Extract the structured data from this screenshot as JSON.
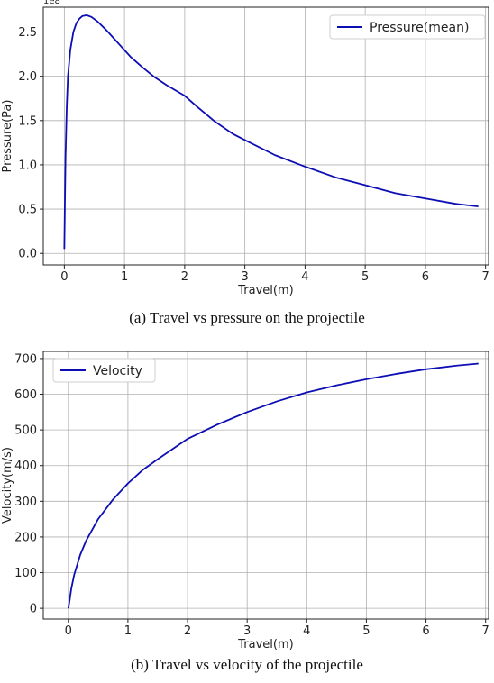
{
  "chart_data": [
    {
      "type": "line",
      "title": "",
      "caption": "(a) Travel vs pressure on the projectile",
      "xlabel": "Travel(m)",
      "ylabel": "Pressure(Pa)",
      "y_offset_label": "1e8",
      "xlim": [
        -0.35,
        7.05
      ],
      "ylim": [
        -0.13,
        2.78
      ],
      "x_ticks": [
        0,
        1,
        2,
        3,
        4,
        5,
        6,
        7
      ],
      "y_ticks": [
        0.0,
        0.5,
        1.0,
        1.5,
        2.0,
        2.5
      ],
      "y_tick_labels": [
        "0.0",
        "0.5",
        "1.0",
        "1.5",
        "2.0",
        "2.5"
      ],
      "grid": true,
      "legend_position": "top-right",
      "color": "#0d0db4",
      "series": [
        {
          "name": "Pressure(mean)",
          "x": [
            0.0,
            0.01,
            0.02,
            0.04,
            0.06,
            0.1,
            0.15,
            0.2,
            0.25,
            0.3,
            0.37,
            0.45,
            0.55,
            0.7,
            0.9,
            1.1,
            1.3,
            1.5,
            1.7,
            2.0,
            2.2,
            2.5,
            2.8,
            3.0,
            3.5,
            4.0,
            4.5,
            5.0,
            5.5,
            6.0,
            6.5,
            6.88
          ],
          "y": [
            0.05,
            0.6,
            1.1,
            1.65,
            2.0,
            2.3,
            2.5,
            2.6,
            2.65,
            2.68,
            2.69,
            2.67,
            2.62,
            2.52,
            2.37,
            2.22,
            2.1,
            1.99,
            1.9,
            1.78,
            1.66,
            1.49,
            1.35,
            1.28,
            1.11,
            0.98,
            0.86,
            0.77,
            0.68,
            0.62,
            0.56,
            0.53
          ]
        }
      ]
    },
    {
      "type": "line",
      "title": "",
      "caption": "(b) Travel vs velocity of the projectile",
      "xlabel": "Travel(m)",
      "ylabel": "Velocity(m/s)",
      "y_offset_label": "",
      "xlim": [
        -0.42,
        7.05
      ],
      "ylim": [
        -30,
        720
      ],
      "x_ticks": [
        0,
        1,
        2,
        3,
        4,
        5,
        6,
        7
      ],
      "y_ticks": [
        0,
        100,
        200,
        300,
        400,
        500,
        600,
        700
      ],
      "y_tick_labels": [
        "0",
        "100",
        "200",
        "300",
        "400",
        "500",
        "600",
        "700"
      ],
      "grid": true,
      "legend_position": "top-left",
      "color": "#0d0db4",
      "series": [
        {
          "name": "Velocity",
          "x": [
            0.0,
            0.02,
            0.05,
            0.1,
            0.2,
            0.3,
            0.5,
            0.75,
            1.0,
            1.25,
            1.5,
            2.0,
            2.5,
            3.0,
            3.5,
            4.0,
            4.5,
            5.0,
            5.5,
            6.0,
            6.5,
            6.88
          ],
          "y": [
            0,
            20,
            55,
            95,
            150,
            190,
            250,
            305,
            350,
            388,
            418,
            475,
            515,
            550,
            580,
            605,
            625,
            642,
            657,
            670,
            680,
            686
          ]
        }
      ]
    }
  ]
}
